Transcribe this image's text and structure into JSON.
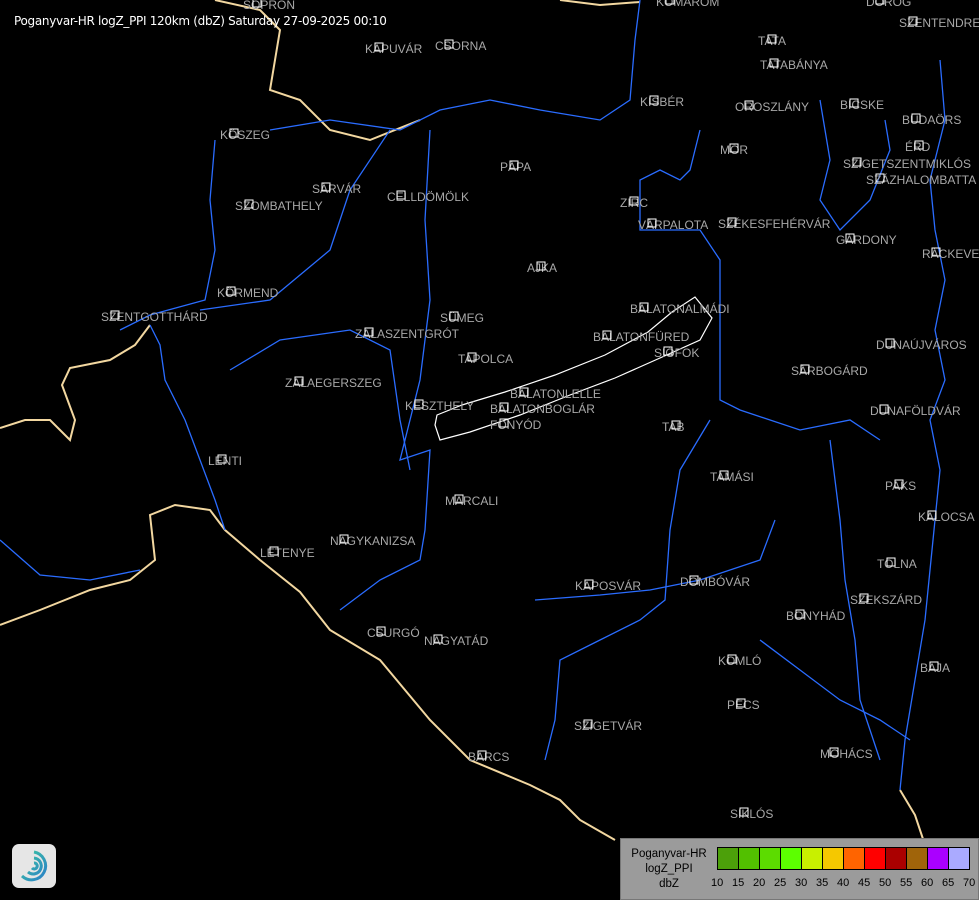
{
  "header": {
    "title": "Poganyvar-HR logZ_PPI 120km (dbZ) Saturday 27-09-2025 00:10"
  },
  "colors": {
    "background": "#000000",
    "river": "#2a6cff",
    "border": "#f2d7a0",
    "city_label": "#a8a8a8",
    "lake": "#ffffff"
  },
  "cities": [
    "SOPRON",
    "KOMÁROM",
    "DOROG",
    "SZENTENDRE",
    "KAPUVÁR",
    "CSORNA",
    "TATA",
    "TATABÁNYA",
    "KISBÉR",
    "OROSZLÁNY",
    "BICSKE",
    "BUDAÖRS",
    "KŐSZEG",
    "MÓR",
    "ÉRD",
    "SZIGETSZENTMIKLÓS",
    "SZÁZHALOMBATTA",
    "PÁPA",
    "SÁRVÁR",
    "CELLDÖMÖLK",
    "SZOMBATHELY",
    "ZIRC",
    "VÁRPALOTA",
    "SZÉKESFEHÉRVÁR",
    "GÁRDONY",
    "RÁCKEVE",
    "AJKA",
    "KÖRMEND",
    "BALATONALMÁDI",
    "SZENTGOTTHÁRD",
    "SÜMEG",
    "ZALASZENTGRÓT",
    "BALATONFÜRED",
    "SIÓFOK",
    "DUNAÚJVÁROS",
    "TAPOLCA",
    "SÁRBOGÁRD",
    "ZALAEGERSZEG",
    "BALATONLELLE",
    "KESZTHELY",
    "BALATONBOGLÁR",
    "FONYÓD",
    "DUNAFÖLDVÁR",
    "TAB",
    "LENTI",
    "TAMÁSI",
    "PAKS",
    "MARCALI",
    "KALOCSA",
    "NAGYKANIZSA",
    "LETENYE",
    "TOLNA",
    "KAPOSVÁR",
    "DOMBÓVÁR",
    "SZEKSZÁRD",
    "BONYHÁD",
    "CSURGÓ",
    "NAGYATÁD",
    "KOMLÓ",
    "BAJA",
    "PÉCS",
    "SZIGETVÁR",
    "MOHÁCS",
    "BARCS",
    "SIKLÓS"
  ],
  "legend": {
    "line1": "Poganyvar-HR",
    "line2": "logZ_PPI",
    "line3": "dbZ",
    "colors": [
      "#4ca00a",
      "#52c000",
      "#5cdc00",
      "#5cff00",
      "#c8f000",
      "#f5c800",
      "#ff6400",
      "#ff0000",
      "#aa0000",
      "#a0640a",
      "#aa00ff",
      "#aaaaff"
    ],
    "ticks": [
      "10",
      "15",
      "20",
      "25",
      "30",
      "35",
      "40",
      "45",
      "50",
      "55",
      "60",
      "65",
      "70"
    ]
  },
  "logo": {
    "icon": "swirl-logo-icon"
  }
}
